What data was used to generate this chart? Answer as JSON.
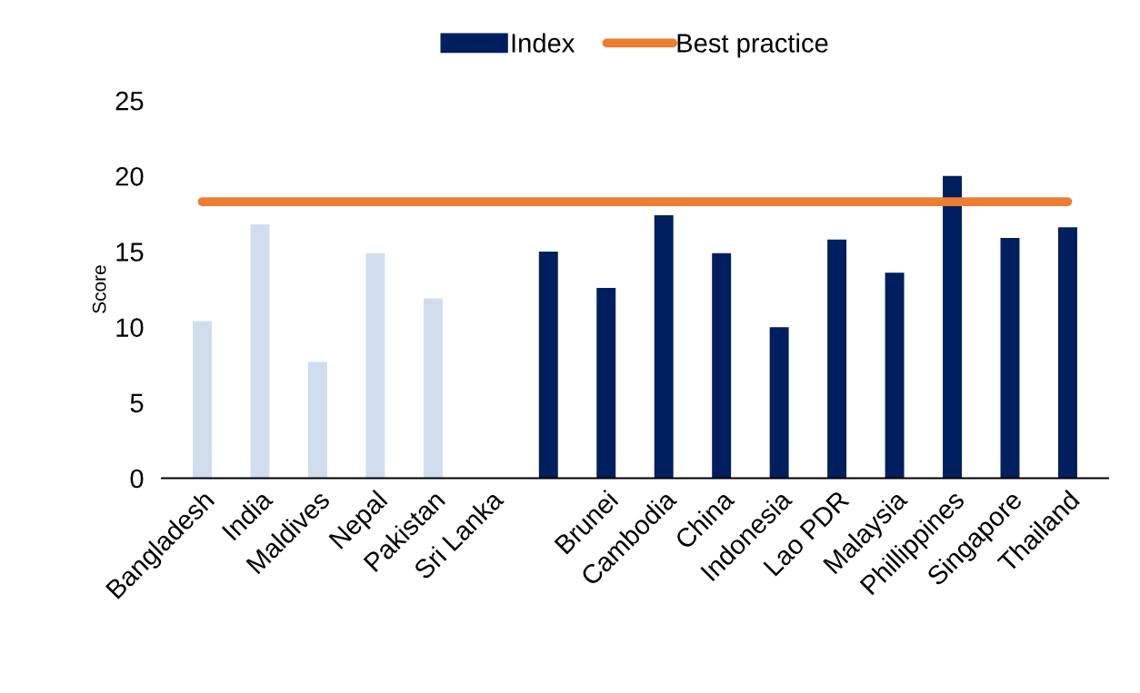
{
  "chart_data": {
    "type": "bar",
    "ylabel": "Score",
    "categories": [
      "Bangladesh",
      "India",
      "Maldives",
      "Nepal",
      "Pakistan",
      "Sri Lanka",
      null,
      "Brunei",
      "Cambodia",
      "China",
      "Indonesia",
      "Lao PDR",
      "Malaysia",
      "Phillippines",
      "Singapore",
      "Thailand"
    ],
    "series": [
      {
        "name": "Index",
        "color": "#001f5f",
        "colors": [
          "#d0ddef",
          "#d0ddef",
          "#d0ddef",
          "#d0ddef",
          "#d0ddef",
          "#d0ddef",
          "#001f5f",
          "#001f5f",
          "#001f5f",
          "#001f5f",
          "#001f5f",
          "#001f5f",
          "#001f5f",
          "#001f5f",
          "#001f5f",
          "#001f5f"
        ],
        "values": [
          10.4,
          16.8,
          7.7,
          14.9,
          11.9,
          null,
          15.0,
          12.6,
          17.4,
          14.9,
          10.0,
          15.8,
          13.6,
          20.0,
          15.9,
          16.6
        ]
      },
      {
        "name": "Best practice",
        "type": "line",
        "color": "#ed7d31",
        "values": [
          18.3,
          18.3,
          18.3,
          18.3,
          18.3,
          18.3,
          18.3,
          18.3,
          18.3,
          18.3,
          18.3,
          18.3,
          18.3,
          18.3,
          18.3,
          18.3
        ]
      }
    ],
    "ylim": [
      0,
      25
    ],
    "yticks": [
      0,
      5,
      10,
      15,
      20,
      25
    ],
    "grid": false,
    "legend": "top"
  }
}
